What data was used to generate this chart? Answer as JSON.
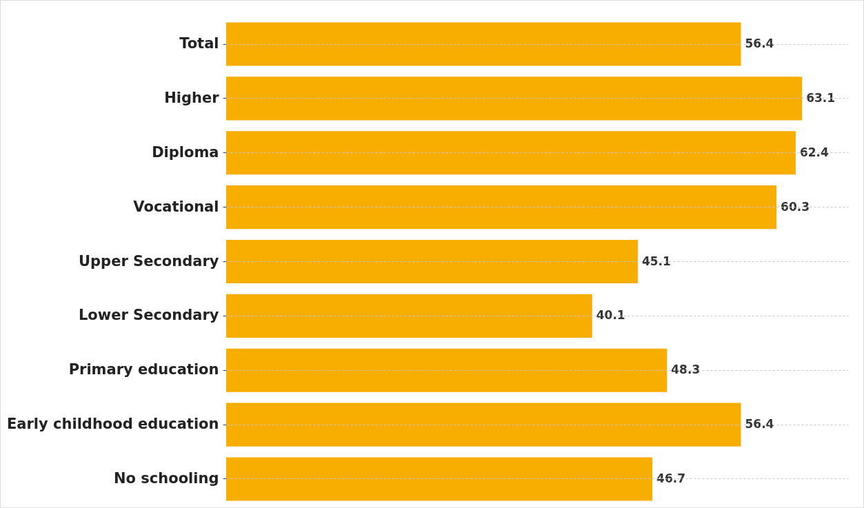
{
  "chart_data": {
    "type": "bar",
    "orientation": "horizontal",
    "categories": [
      "Total",
      "Higher",
      "Diploma",
      "Vocational",
      "Upper Secondary",
      "Lower Secondary",
      "Primary education",
      "Early childhood education",
      "No schooling"
    ],
    "values": [
      56.4,
      63.1,
      62.4,
      60.3,
      45.1,
      40.1,
      48.3,
      56.4,
      46.7
    ],
    "color": "#f8ae00",
    "data_labels": true,
    "grid": "y",
    "tick_labels": "y"
  }
}
